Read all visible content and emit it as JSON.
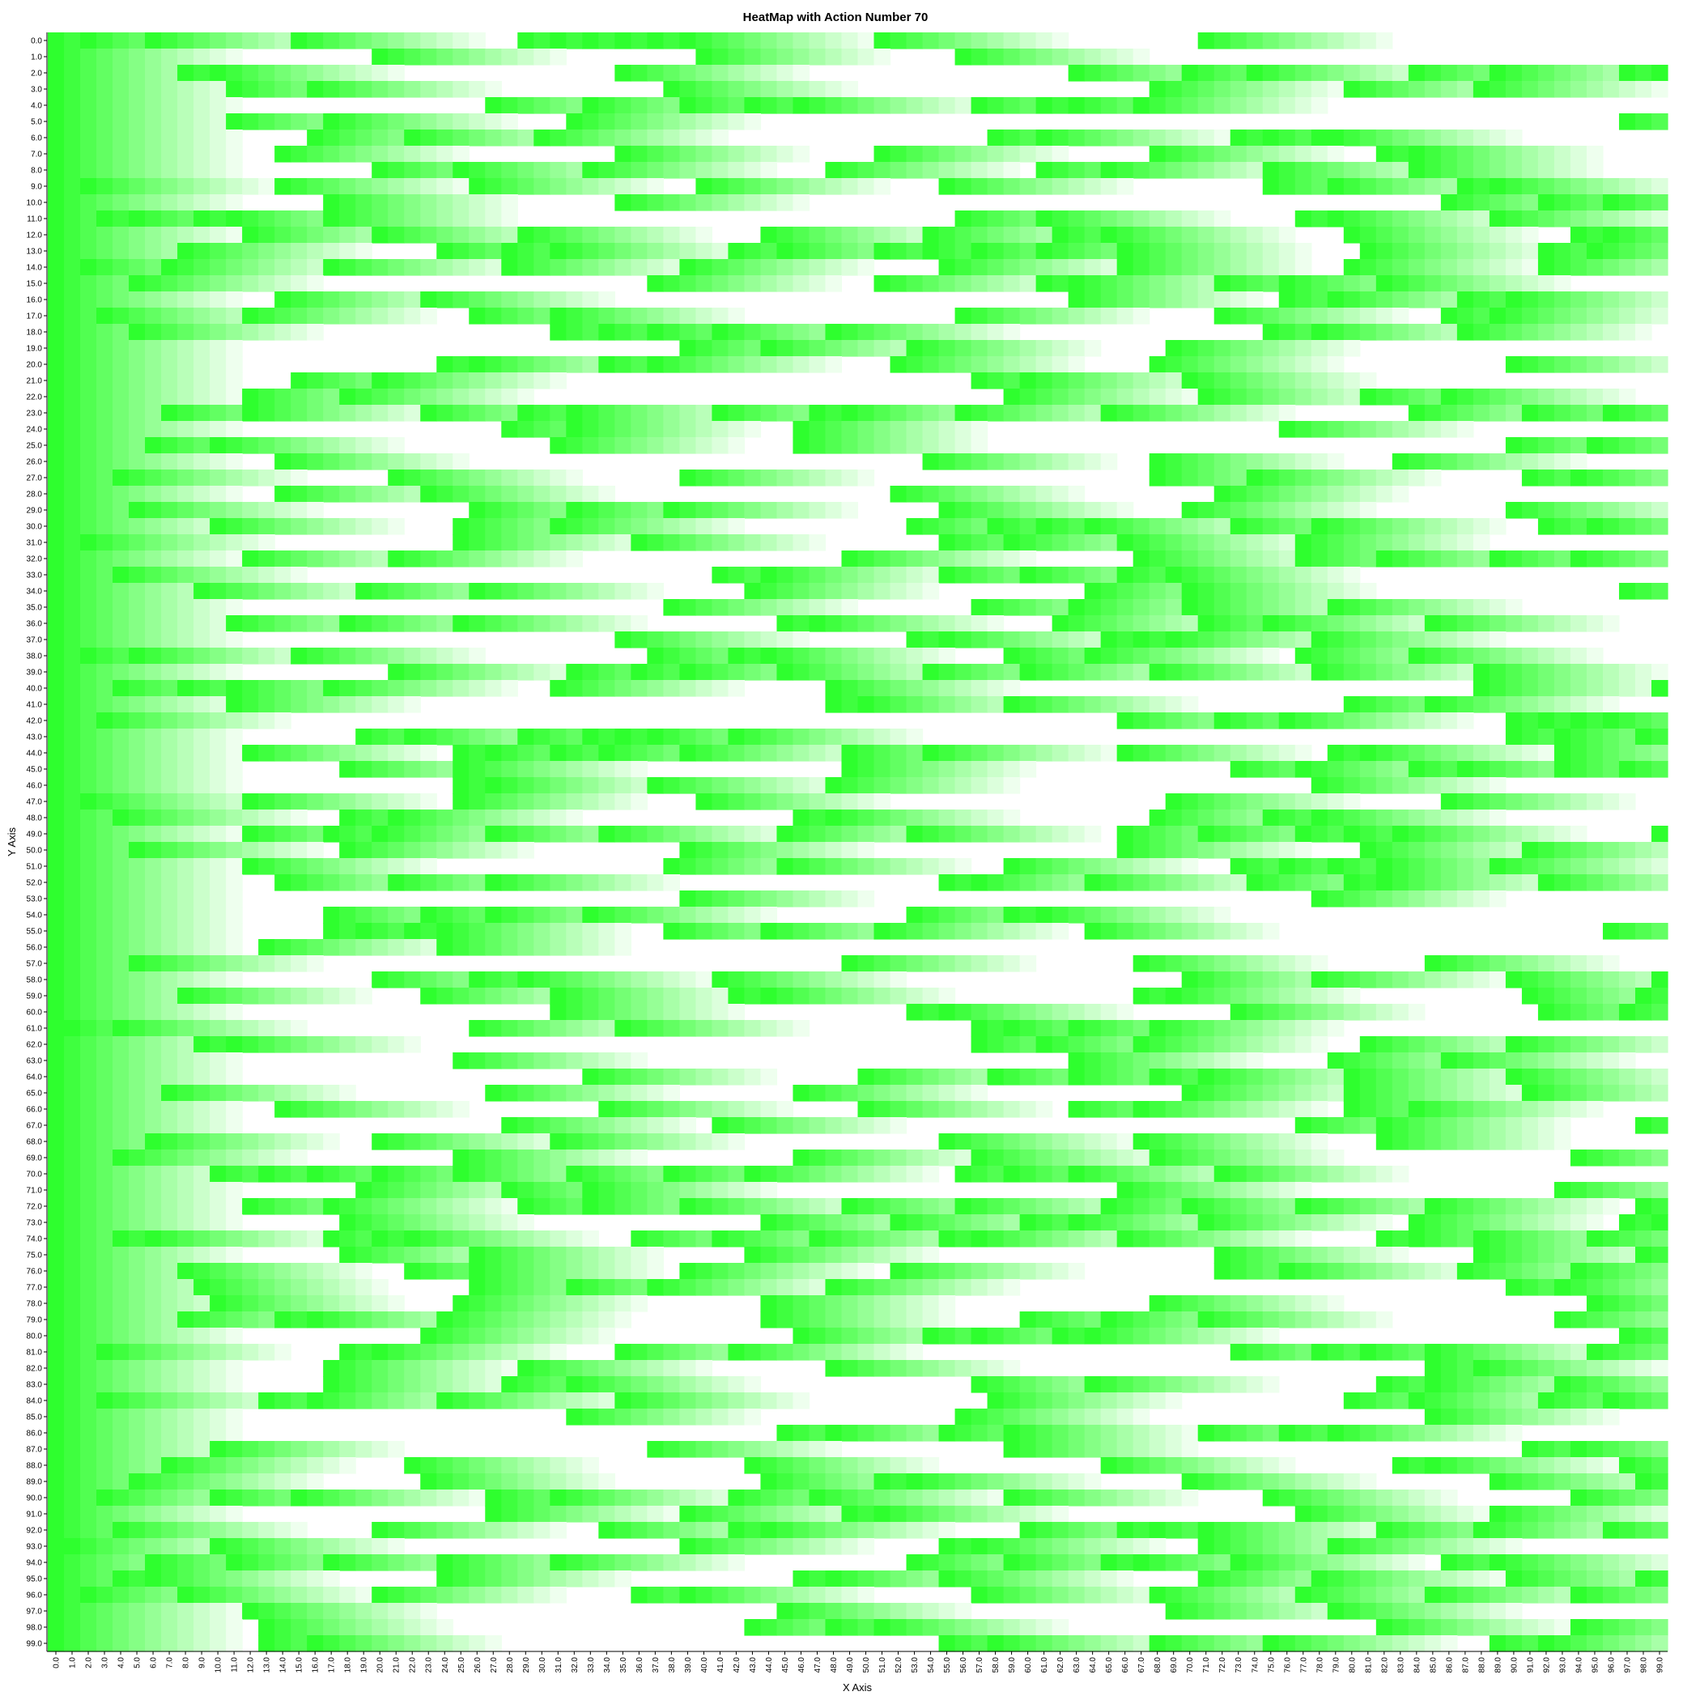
{
  "chart_data": {
    "type": "heatmap",
    "title": "HeatMap with Action Number 70",
    "xlabel": "X Axis",
    "ylabel": "Y Axis",
    "x_ticks": [
      "0.0",
      "1.0",
      "2.0",
      "3.0",
      "4.0",
      "5.0",
      "6.0",
      "7.0",
      "8.0",
      "9.0",
      "10.0",
      "11.0",
      "12.0",
      "13.0",
      "14.0",
      "15.0",
      "16.0",
      "17.0",
      "18.0",
      "19.0",
      "20.0",
      "21.0",
      "22.0",
      "23.0",
      "24.0",
      "25.0",
      "26.0",
      "27.0",
      "28.0",
      "29.0",
      "30.0",
      "31.0",
      "32.0",
      "33.0",
      "34.0",
      "35.0",
      "36.0",
      "37.0",
      "38.0",
      "39.0",
      "40.0",
      "41.0",
      "42.0",
      "43.0",
      "44.0",
      "45.0",
      "46.0",
      "47.0",
      "48.0",
      "49.0",
      "50.0",
      "51.0",
      "52.0",
      "53.0",
      "54.0",
      "55.0",
      "56.0",
      "57.0",
      "58.0",
      "59.0",
      "60.0",
      "61.0",
      "62.0",
      "63.0",
      "64.0",
      "65.0",
      "66.0",
      "67.0",
      "68.0",
      "69.0",
      "70.0",
      "71.0",
      "72.0",
      "73.0",
      "74.0",
      "75.0",
      "76.0",
      "77.0",
      "78.0",
      "79.0",
      "80.0",
      "81.0",
      "82.0",
      "83.0",
      "84.0",
      "85.0",
      "86.0",
      "87.0",
      "88.0",
      "89.0",
      "90.0",
      "91.0",
      "92.0",
      "93.0",
      "94.0",
      "95.0",
      "96.0",
      "97.0",
      "98.0",
      "99.0"
    ],
    "y_ticks": [
      "0.0",
      "1.0",
      "2.0",
      "3.0",
      "4.0",
      "5.0",
      "6.0",
      "7.0",
      "8.0",
      "9.0",
      "10.0",
      "11.0",
      "12.0",
      "13.0",
      "14.0",
      "15.0",
      "16.0",
      "17.0",
      "18.0",
      "19.0",
      "20.0",
      "21.0",
      "22.0",
      "23.0",
      "24.0",
      "25.0",
      "26.0",
      "27.0",
      "28.0",
      "29.0",
      "30.0",
      "31.0",
      "32.0",
      "33.0",
      "34.0",
      "35.0",
      "36.0",
      "37.0",
      "38.0",
      "39.0",
      "40.0",
      "41.0",
      "42.0",
      "43.0",
      "44.0",
      "45.0",
      "46.0",
      "47.0",
      "48.0",
      "49.0",
      "50.0",
      "51.0",
      "52.0",
      "53.0",
      "54.0",
      "55.0",
      "56.0",
      "57.0",
      "58.0",
      "59.0",
      "60.0",
      "61.0",
      "62.0",
      "63.0",
      "64.0",
      "65.0",
      "66.0",
      "67.0",
      "68.0",
      "69.0",
      "70.0",
      "71.0",
      "72.0",
      "73.0",
      "74.0",
      "75.0",
      "76.0",
      "77.0",
      "78.0",
      "79.0",
      "80.0",
      "81.0",
      "82.0",
      "83.0",
      "84.0",
      "85.0",
      "86.0",
      "87.0",
      "88.0",
      "89.0",
      "90.0",
      "91.0",
      "92.0",
      "93.0",
      "94.0",
      "95.0",
      "96.0",
      "97.0",
      "98.0",
      "99.0"
    ],
    "x_range": [
      0,
      99
    ],
    "y_range": [
      0,
      99
    ],
    "cell_fade_steps": 12,
    "grid": false,
    "legend": "none",
    "colorscale": [
      "#ffffff",
      "#00ff00"
    ],
    "hot_cells": [
      [
        0,
        [
          0,
          2,
          6,
          15,
          29,
          31,
          33,
          35,
          37,
          39,
          51,
          71
        ]
      ],
      [
        1,
        [
          0,
          20,
          40,
          56
        ]
      ],
      [
        2,
        [
          0,
          8,
          10,
          35,
          63,
          70,
          74,
          84,
          89,
          97,
          99
        ]
      ],
      [
        3,
        [
          0,
          11,
          16,
          38,
          68,
          80,
          88
        ]
      ],
      [
        4,
        [
          0,
          27,
          33,
          39,
          43,
          46,
          57,
          61,
          63,
          67
        ]
      ],
      [
        5,
        [
          0,
          11,
          17,
          32,
          97
        ]
      ],
      [
        6,
        [
          0,
          16,
          22,
          30,
          58,
          61,
          73,
          75,
          78,
          79
        ]
      ],
      [
        7,
        [
          0,
          14,
          35,
          51,
          68,
          82,
          84
        ]
      ],
      [
        8,
        [
          0,
          20,
          25,
          33,
          48,
          61,
          65,
          75,
          84
        ]
      ],
      [
        9,
        [
          0,
          2,
          14,
          26,
          40,
          55,
          75,
          79,
          87,
          89
        ]
      ],
      [
        10,
        [
          0,
          17,
          35,
          86,
          92,
          96
        ]
      ],
      [
        11,
        [
          0,
          3,
          5,
          9,
          11,
          17,
          56,
          61,
          77,
          79,
          89
        ]
      ],
      [
        12,
        [
          0,
          12,
          20,
          29,
          44,
          54,
          62,
          65,
          80,
          94,
          96
        ]
      ],
      [
        13,
        [
          0,
          8,
          24,
          28,
          31,
          42,
          45,
          51,
          54,
          57,
          61,
          66,
          81,
          92,
          95
        ]
      ],
      [
        14,
        [
          0,
          2,
          7,
          17,
          28,
          39,
          55,
          66,
          80,
          92
        ]
      ],
      [
        15,
        [
          0,
          5,
          37,
          51,
          61,
          63,
          72,
          76,
          82
        ]
      ],
      [
        16,
        [
          0,
          14,
          23,
          63,
          76,
          79,
          87,
          90
        ]
      ],
      [
        17,
        [
          0,
          3,
          12,
          26,
          31,
          56,
          72,
          86,
          89
        ]
      ],
      [
        18,
        [
          0,
          5,
          31,
          34,
          37,
          41,
          48,
          75,
          78,
          87
        ]
      ],
      [
        19,
        [
          0,
          39,
          44,
          53,
          69
        ]
      ],
      [
        20,
        [
          0,
          24,
          26,
          34,
          37,
          52,
          68,
          90
        ]
      ],
      [
        21,
        [
          0,
          15,
          20,
          57,
          60,
          70
        ]
      ],
      [
        22,
        [
          0,
          12,
          18,
          59,
          71,
          81,
          86
        ]
      ],
      [
        23,
        [
          0,
          7,
          12,
          23,
          29,
          32,
          41,
          47,
          49,
          56,
          65,
          84,
          91,
          96
        ]
      ],
      [
        24,
        [
          0,
          28,
          32,
          46,
          76
        ]
      ],
      [
        25,
        [
          0,
          6,
          10,
          31,
          46,
          90,
          95
        ]
      ],
      [
        26,
        [
          0,
          14,
          54,
          68,
          83
        ]
      ],
      [
        27,
        [
          0,
          4,
          21,
          39,
          68,
          74,
          91,
          94
        ]
      ],
      [
        28,
        [
          0,
          14,
          23,
          52,
          72
        ]
      ],
      [
        29,
        [
          0,
          5,
          26,
          32,
          38,
          55,
          70,
          90
        ]
      ],
      [
        30,
        [
          0,
          10,
          25,
          31,
          53,
          58,
          61,
          64,
          73,
          78,
          92,
          95
        ]
      ],
      [
        31,
        [
          0,
          2,
          25,
          36,
          55,
          59,
          66,
          77
        ]
      ],
      [
        32,
        [
          0,
          12,
          21,
          49,
          67,
          77,
          82,
          89,
          94
        ]
      ],
      [
        33,
        [
          0,
          4,
          41,
          44,
          55,
          60,
          66,
          69
        ]
      ],
      [
        34,
        [
          0,
          9,
          19,
          26,
          43,
          64,
          70,
          97
        ]
      ],
      [
        35,
        [
          0,
          38,
          57,
          63,
          70,
          79
        ]
      ],
      [
        36,
        [
          0,
          11,
          18,
          25,
          45,
          47,
          62,
          71,
          75,
          85
        ]
      ],
      [
        37,
        [
          0,
          35,
          53,
          55,
          65,
          67,
          69,
          78
        ]
      ],
      [
        38,
        [
          0,
          2,
          5,
          15,
          37,
          42,
          44,
          59,
          64,
          77,
          84
        ]
      ],
      [
        39,
        [
          0,
          21,
          32,
          36,
          39,
          45,
          54,
          60,
          68,
          78,
          88
        ]
      ],
      [
        40,
        [
          0,
          4,
          8,
          11,
          17,
          31,
          48,
          88,
          99
        ]
      ],
      [
        41,
        [
          0,
          11,
          48,
          50,
          59,
          80,
          85
        ]
      ],
      [
        42,
        [
          0,
          3,
          66,
          72,
          76,
          90,
          92,
          94,
          96
        ]
      ],
      [
        43,
        [
          0,
          19,
          22,
          29,
          33,
          35,
          37,
          42,
          90,
          93,
          98
        ]
      ],
      [
        44,
        [
          0,
          12,
          25,
          27,
          31,
          34,
          39,
          49,
          54,
          66,
          79,
          81,
          93
        ]
      ],
      [
        45,
        [
          0,
          18,
          25,
          49,
          73,
          77,
          84,
          87,
          93,
          97
        ]
      ],
      [
        46,
        [
          0,
          25,
          27,
          37,
          48,
          78
        ]
      ],
      [
        47,
        [
          0,
          2,
          12,
          25,
          40,
          69,
          86
        ]
      ],
      [
        48,
        [
          0,
          4,
          18,
          21,
          46,
          48,
          68,
          75,
          78
        ]
      ],
      [
        49,
        [
          0,
          12,
          17,
          20,
          27,
          34,
          45,
          53,
          66,
          71,
          77,
          80,
          83,
          99
        ]
      ],
      [
        50,
        [
          0,
          5,
          18,
          39,
          66,
          81,
          91
        ]
      ],
      [
        51,
        [
          0,
          12,
          38,
          45,
          59,
          73,
          76,
          79,
          82,
          89
        ]
      ],
      [
        52,
        [
          0,
          14,
          21,
          27,
          55,
          57,
          64,
          74,
          80,
          82,
          92
        ]
      ],
      [
        53,
        [
          0,
          39,
          78
        ]
      ],
      [
        54,
        [
          0,
          17,
          23,
          27,
          33,
          53,
          59,
          61
        ]
      ],
      [
        55,
        [
          0,
          17,
          19,
          22,
          24,
          38,
          44,
          51,
          64,
          96
        ]
      ],
      [
        56,
        [
          0,
          13,
          24
        ]
      ],
      [
        57,
        [
          0,
          5,
          49,
          67,
          85
        ]
      ],
      [
        58,
        [
          0,
          20,
          26,
          29,
          41,
          70,
          78,
          90,
          99
        ]
      ],
      [
        59,
        [
          0,
          8,
          23,
          31,
          42,
          44,
          67,
          69,
          91,
          98
        ]
      ],
      [
        60,
        [
          0,
          31,
          53,
          55,
          73,
          92,
          97
        ]
      ],
      [
        61,
        [
          0,
          1,
          4,
          26,
          35,
          57,
          59,
          63,
          68
        ]
      ],
      [
        62,
        [
          0,
          9,
          11,
          57,
          61,
          67,
          81,
          90
        ]
      ],
      [
        63,
        [
          0,
          25,
          63,
          79,
          86
        ]
      ],
      [
        64,
        [
          0,
          33,
          50,
          58,
          63,
          68,
          71,
          80,
          90
        ]
      ],
      [
        65,
        [
          0,
          7,
          27,
          46,
          70,
          80,
          91
        ]
      ],
      [
        66,
        [
          0,
          14,
          34,
          50,
          63,
          67,
          80,
          84
        ]
      ],
      [
        67,
        [
          0,
          28,
          41,
          77,
          82,
          98
        ]
      ],
      [
        68,
        [
          0,
          6,
          20,
          31,
          55,
          67,
          82
        ]
      ],
      [
        69,
        [
          0,
          4,
          25,
          46,
          57,
          68,
          94
        ]
      ],
      [
        70,
        [
          0,
          10,
          13,
          16,
          20,
          25,
          32,
          38,
          43,
          56,
          59,
          63,
          72
        ]
      ],
      [
        71,
        [
          0,
          19,
          28,
          33,
          66,
          93
        ]
      ],
      [
        72,
        [
          0,
          12,
          17,
          29,
          33,
          39,
          49,
          56,
          65,
          70,
          77,
          85,
          98
        ]
      ],
      [
        73,
        [
          0,
          18,
          44,
          52,
          60,
          63,
          71,
          84,
          97,
          99
        ]
      ],
      [
        74,
        [
          0,
          4,
          6,
          17,
          20,
          22,
          36,
          41,
          47,
          55,
          57,
          66,
          82,
          84,
          88,
          95
        ]
      ],
      [
        75,
        [
          0,
          18,
          26,
          43,
          72,
          88,
          98
        ]
      ],
      [
        76,
        [
          0,
          8,
          22,
          26,
          39,
          52,
          72,
          76,
          87,
          94
        ]
      ],
      [
        77,
        [
          0,
          9,
          26,
          32,
          37,
          48,
          90,
          93
        ]
      ],
      [
        78,
        [
          0,
          10,
          25,
          44,
          68,
          95
        ]
      ],
      [
        79,
        [
          0,
          8,
          14,
          16,
          24,
          44,
          60,
          65,
          71,
          93
        ]
      ],
      [
        80,
        [
          0,
          23,
          46,
          54,
          57,
          62,
          64,
          97
        ]
      ],
      [
        81,
        [
          0,
          3,
          18,
          20,
          35,
          42,
          73,
          78,
          81,
          85,
          95
        ]
      ],
      [
        82,
        [
          0,
          17,
          29,
          48,
          85,
          88
        ]
      ],
      [
        83,
        [
          0,
          17,
          28,
          32,
          57,
          64,
          82,
          85,
          93
        ]
      ],
      [
        84,
        [
          0,
          3,
          13,
          16,
          24,
          35,
          58,
          80,
          84,
          92,
          96
        ]
      ],
      [
        85,
        [
          0,
          32,
          56,
          85
        ]
      ],
      [
        86,
        [
          0,
          45,
          48,
          55,
          59,
          71,
          76,
          79
        ]
      ],
      [
        87,
        [
          0,
          10,
          37,
          59,
          91,
          94
        ]
      ],
      [
        88,
        [
          0,
          7,
          22,
          43,
          65,
          83,
          85,
          97
        ]
      ],
      [
        89,
        [
          0,
          5,
          23,
          44,
          51,
          53,
          70,
          89,
          98
        ]
      ],
      [
        90,
        [
          0,
          3,
          10,
          15,
          27,
          31,
          42,
          47,
          59,
          75,
          94
        ]
      ],
      [
        91,
        [
          0,
          27,
          39,
          49,
          51,
          77,
          89
        ]
      ],
      [
        92,
        [
          0,
          4,
          20,
          34,
          42,
          44,
          60,
          66,
          68,
          71,
          82,
          88,
          96
        ]
      ],
      [
        93,
        [
          0,
          1,
          10,
          39,
          55,
          57,
          71,
          79
        ]
      ],
      [
        94,
        [
          0,
          6,
          11,
          17,
          24,
          31,
          53,
          59,
          65,
          67,
          73,
          86,
          89
        ]
      ],
      [
        95,
        [
          0,
          4,
          6,
          24,
          46,
          48,
          55,
          71,
          78,
          90,
          98
        ]
      ],
      [
        96,
        [
          0,
          2,
          8,
          20,
          36,
          39,
          57,
          68,
          77,
          85,
          94
        ]
      ],
      [
        97,
        [
          0,
          12,
          45,
          69,
          79
        ]
      ],
      [
        98,
        [
          0,
          13,
          43,
          48,
          51,
          82,
          94
        ]
      ],
      [
        99,
        [
          0,
          13,
          16,
          55,
          58,
          68,
          75,
          89,
          92
        ]
      ]
    ]
  }
}
